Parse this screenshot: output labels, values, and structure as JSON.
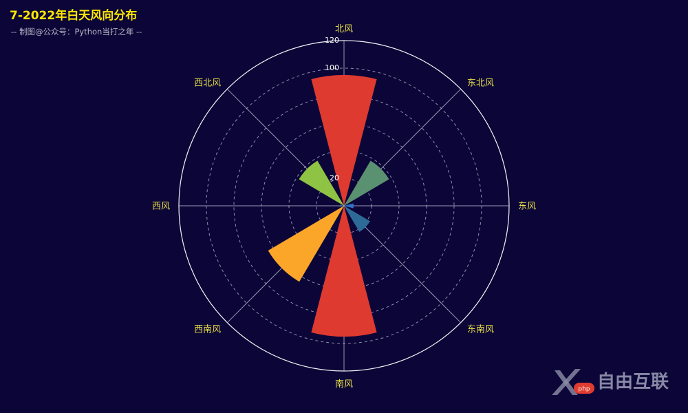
{
  "title": "7-2022年白天风向分布",
  "subtitle": "-- 制图@公众号：Python当打之年 --",
  "watermark_text": "自由互联",
  "chart_data": {
    "type": "rose",
    "title": "7-2022年白天风向分布",
    "subtitle": "-- 制图@公众号：Python当打之年 --",
    "directions": [
      "北风",
      "东北风",
      "东风",
      "东南风",
      "南风",
      "西南风",
      "西风",
      "西北风"
    ],
    "values": [
      95,
      38,
      7,
      22,
      95,
      64,
      3,
      38
    ],
    "colors": [
      "#de3a30",
      "#5a9170",
      "#2f70c6",
      "#2d6a98",
      "#de3a30",
      "#fba628",
      "#2f70c6",
      "#8fc343"
    ],
    "radial_ticks": [
      20,
      40,
      60,
      80,
      100,
      120
    ],
    "radial_labels_shown": [
      "20",
      "100",
      "120"
    ],
    "rmax": 120,
    "angle_labels_color": "#e6dc48",
    "background": "#0c0638"
  }
}
